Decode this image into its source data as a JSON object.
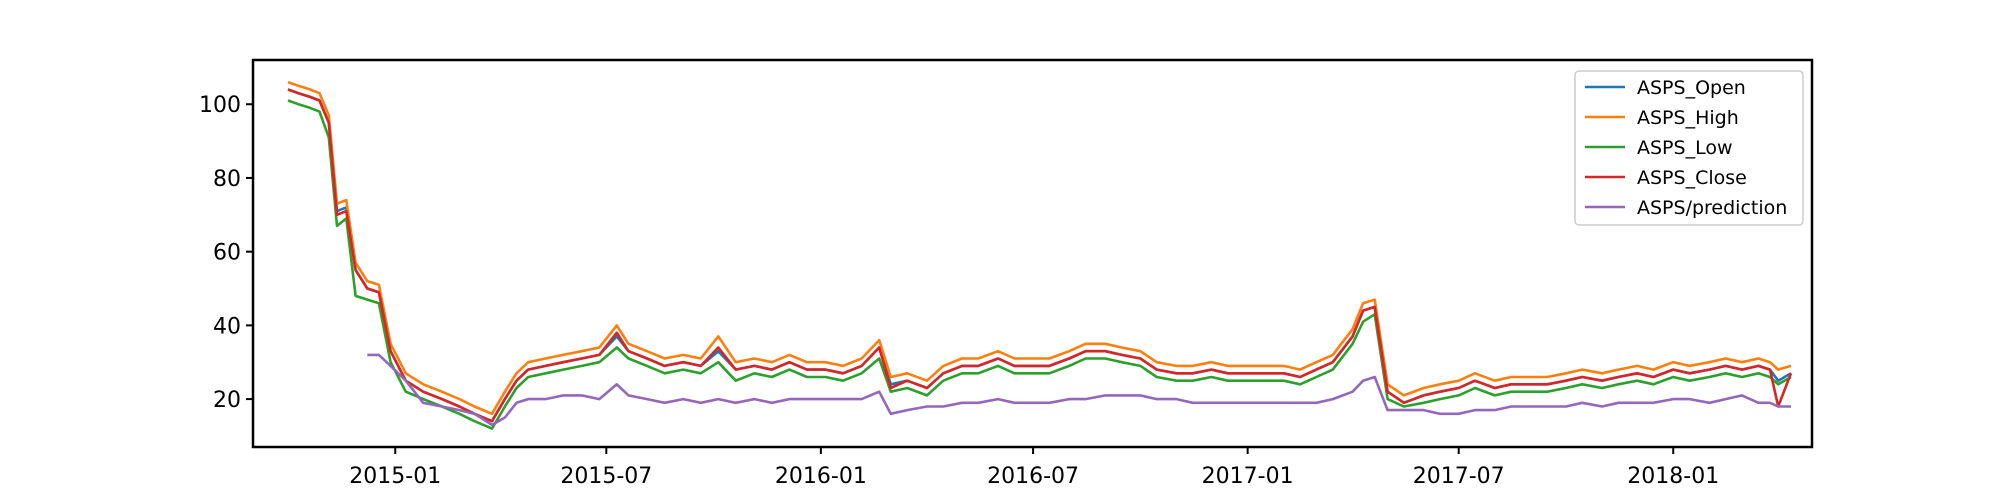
{
  "chart_data": {
    "type": "line",
    "title": "",
    "xlabel": "",
    "ylabel": "",
    "x_range": [
      "2014-09-01",
      "2018-04-30"
    ],
    "ylim": [
      7,
      112
    ],
    "y_ticks": [
      20,
      40,
      60,
      80,
      100
    ],
    "x_ticks": [
      {
        "date": "2015-01-01",
        "label": "2015-01"
      },
      {
        "date": "2015-07-01",
        "label": "2015-07"
      },
      {
        "date": "2016-01-01",
        "label": "2016-01"
      },
      {
        "date": "2016-07-01",
        "label": "2016-07"
      },
      {
        "date": "2017-01-01",
        "label": "2017-01"
      },
      {
        "date": "2017-07-01",
        "label": "2017-07"
      },
      {
        "date": "2018-01-01",
        "label": "2018-01"
      }
    ],
    "grid": false,
    "legend_position": "top-right",
    "x": [
      "2014-10-01",
      "2014-10-10",
      "2014-10-20",
      "2014-10-28",
      "2014-11-05",
      "2014-11-12",
      "2014-11-20",
      "2014-11-28",
      "2014-12-08",
      "2014-12-18",
      "2014-12-28",
      "2015-01-10",
      "2015-01-25",
      "2015-02-10",
      "2015-02-25",
      "2015-03-10",
      "2015-03-25",
      "2015-04-05",
      "2015-04-15",
      "2015-04-25",
      "2015-05-10",
      "2015-05-25",
      "2015-06-10",
      "2015-06-25",
      "2015-07-10",
      "2015-07-20",
      "2015-08-05",
      "2015-08-20",
      "2015-09-05",
      "2015-09-20",
      "2015-10-05",
      "2015-10-20",
      "2015-11-05",
      "2015-11-20",
      "2015-12-05",
      "2015-12-20",
      "2016-01-05",
      "2016-01-20",
      "2016-02-05",
      "2016-02-20",
      "2016-03-01",
      "2016-03-15",
      "2016-04-01",
      "2016-04-15",
      "2016-05-01",
      "2016-05-15",
      "2016-06-01",
      "2016-06-15",
      "2016-07-01",
      "2016-07-15",
      "2016-08-01",
      "2016-08-15",
      "2016-09-01",
      "2016-09-15",
      "2016-10-01",
      "2016-10-15",
      "2016-11-01",
      "2016-11-15",
      "2016-12-01",
      "2016-12-15",
      "2017-01-01",
      "2017-01-15",
      "2017-02-01",
      "2017-02-15",
      "2017-03-01",
      "2017-03-15",
      "2017-04-01",
      "2017-04-10",
      "2017-04-20",
      "2017-05-01",
      "2017-05-15",
      "2017-06-01",
      "2017-06-15",
      "2017-07-01",
      "2017-07-15",
      "2017-08-01",
      "2017-08-15",
      "2017-09-01",
      "2017-09-15",
      "2017-10-01",
      "2017-10-15",
      "2017-11-01",
      "2017-11-15",
      "2017-12-01",
      "2017-12-15",
      "2018-01-01",
      "2018-01-15",
      "2018-02-01",
      "2018-02-15",
      "2018-03-01",
      "2018-03-15",
      "2018-03-25",
      "2018-04-01",
      "2018-04-12"
    ],
    "series": [
      {
        "name": "ASPS_Open",
        "color": "#1f77b4",
        "values": [
          104,
          103,
          102,
          101,
          95,
          71,
          72,
          55,
          50,
          49,
          33,
          25,
          22,
          20,
          18,
          16,
          14,
          20,
          25,
          28,
          29,
          30,
          31,
          32,
          37,
          33,
          31,
          29,
          30,
          29,
          33,
          28,
          29,
          28,
          30,
          28,
          28,
          27,
          29,
          34,
          24,
          25,
          23,
          27,
          29,
          29,
          31,
          29,
          29,
          29,
          31,
          33,
          33,
          32,
          31,
          28,
          27,
          27,
          28,
          27,
          27,
          27,
          27,
          26,
          28,
          30,
          37,
          44,
          45,
          22,
          19,
          21,
          22,
          23,
          25,
          23,
          24,
          24,
          24,
          25,
          26,
          25,
          26,
          27,
          26,
          28,
          27,
          28,
          29,
          28,
          29,
          28,
          25,
          27
        ]
      },
      {
        "name": "ASPS_High",
        "color": "#ff7f0e",
        "values": [
          106,
          105,
          104,
          103,
          97,
          73,
          74,
          57,
          52,
          51,
          35,
          27,
          24,
          22,
          20,
          18,
          16,
          22,
          27,
          30,
          31,
          32,
          33,
          34,
          40,
          35,
          33,
          31,
          32,
          31,
          37,
          30,
          31,
          30,
          32,
          30,
          30,
          29,
          31,
          36,
          26,
          27,
          25,
          29,
          31,
          31,
          33,
          31,
          31,
          31,
          33,
          35,
          35,
          34,
          33,
          30,
          29,
          29,
          30,
          29,
          29,
          29,
          29,
          28,
          30,
          32,
          39,
          46,
          47,
          24,
          21,
          23,
          24,
          25,
          27,
          25,
          26,
          26,
          26,
          27,
          28,
          27,
          28,
          29,
          28,
          30,
          29,
          30,
          31,
          30,
          31,
          30,
          28,
          29
        ]
      },
      {
        "name": "ASPS_Low",
        "color": "#2ca02c",
        "values": [
          101,
          100,
          99,
          98,
          91,
          67,
          69,
          48,
          47,
          46,
          30,
          22,
          20,
          18,
          16,
          14,
          12,
          18,
          23,
          26,
          27,
          28,
          29,
          30,
          34,
          31,
          29,
          27,
          28,
          27,
          30,
          25,
          27,
          26,
          28,
          26,
          26,
          25,
          27,
          31,
          22,
          23,
          21,
          25,
          27,
          27,
          29,
          27,
          27,
          27,
          29,
          31,
          31,
          30,
          29,
          26,
          25,
          25,
          26,
          25,
          25,
          25,
          25,
          24,
          26,
          28,
          35,
          41,
          43,
          20,
          18,
          19,
          20,
          21,
          23,
          21,
          22,
          22,
          22,
          23,
          24,
          23,
          24,
          25,
          24,
          26,
          25,
          26,
          27,
          26,
          27,
          26,
          24,
          26
        ]
      },
      {
        "name": "ASPS_Close",
        "color": "#d62728",
        "values": [
          104,
          103,
          102,
          101,
          95,
          70,
          71,
          55,
          50,
          49,
          33,
          25,
          22,
          20,
          18,
          16,
          14,
          20,
          25,
          28,
          29,
          30,
          31,
          32,
          38,
          33,
          31,
          29,
          30,
          29,
          34,
          28,
          29,
          28,
          30,
          28,
          28,
          27,
          29,
          34,
          23,
          25,
          23,
          27,
          29,
          29,
          31,
          29,
          29,
          29,
          31,
          33,
          33,
          32,
          31,
          28,
          27,
          27,
          28,
          27,
          27,
          27,
          27,
          26,
          28,
          30,
          37,
          44,
          45,
          22,
          19,
          21,
          22,
          23,
          25,
          23,
          24,
          24,
          24,
          25,
          26,
          25,
          26,
          27,
          26,
          28,
          27,
          28,
          29,
          28,
          29,
          28,
          18,
          27
        ]
      },
      {
        "name": "ASPS/prediction",
        "color": "#9467bd",
        "values": [
          null,
          null,
          null,
          null,
          null,
          null,
          null,
          null,
          32,
          32,
          29,
          25,
          19,
          18,
          17,
          16,
          13,
          15,
          19,
          20,
          20,
          21,
          21,
          20,
          24,
          21,
          20,
          19,
          20,
          19,
          20,
          19,
          20,
          19,
          20,
          20,
          20,
          20,
          20,
          22,
          16,
          17,
          18,
          18,
          19,
          19,
          20,
          19,
          19,
          19,
          20,
          20,
          21,
          21,
          21,
          20,
          20,
          19,
          19,
          19,
          19,
          19,
          19,
          19,
          19,
          20,
          22,
          25,
          26,
          17,
          17,
          17,
          16,
          16,
          17,
          17,
          18,
          18,
          18,
          18,
          19,
          18,
          19,
          19,
          19,
          20,
          20,
          19,
          20,
          21,
          19,
          19,
          18,
          18
        ]
      }
    ]
  }
}
